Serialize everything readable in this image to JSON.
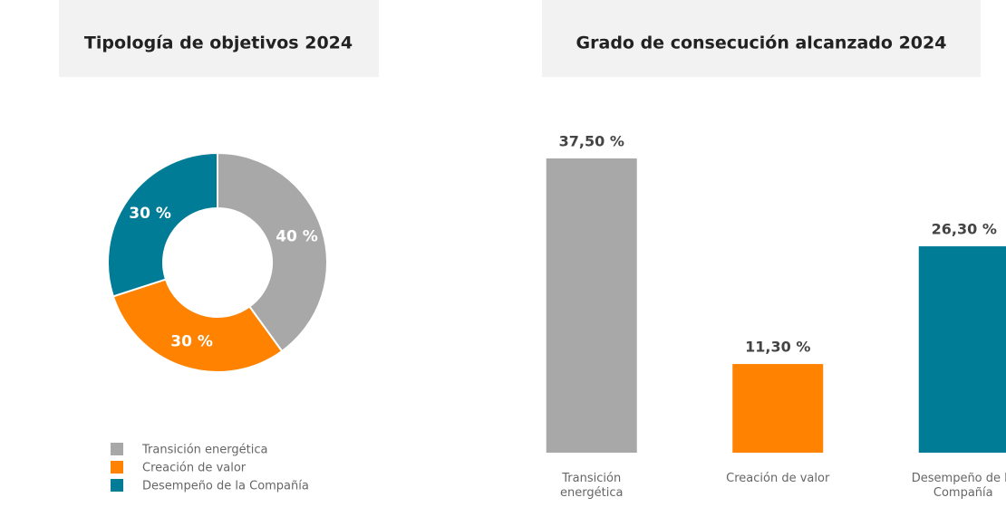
{
  "chart_data": [
    {
      "type": "pie",
      "title": "Tipología de objetivos 2024",
      "categories": [
        "Transición energética",
        "Creación de valor",
        "Desempeño de la Compañía"
      ],
      "values": [
        40,
        30,
        30
      ],
      "value_labels": [
        "40 %",
        "30 %",
        "30 %"
      ],
      "colors": [
        "#a8a8a8",
        "#ff8200",
        "#007c97"
      ],
      "legend": "bottom-left"
    },
    {
      "type": "bar",
      "title": "Grado de consecución alcanzado 2024",
      "categories": [
        "Transición energética",
        "Creación de valor",
        "Desempeño de la Compañía"
      ],
      "values": [
        37.5,
        11.3,
        26.3
      ],
      "value_labels": [
        "37,50 %",
        "11,30 %",
        "26,30 %"
      ],
      "colors": [
        "#a8a8a8",
        "#ff8200",
        "#007c97"
      ]
    }
  ]
}
